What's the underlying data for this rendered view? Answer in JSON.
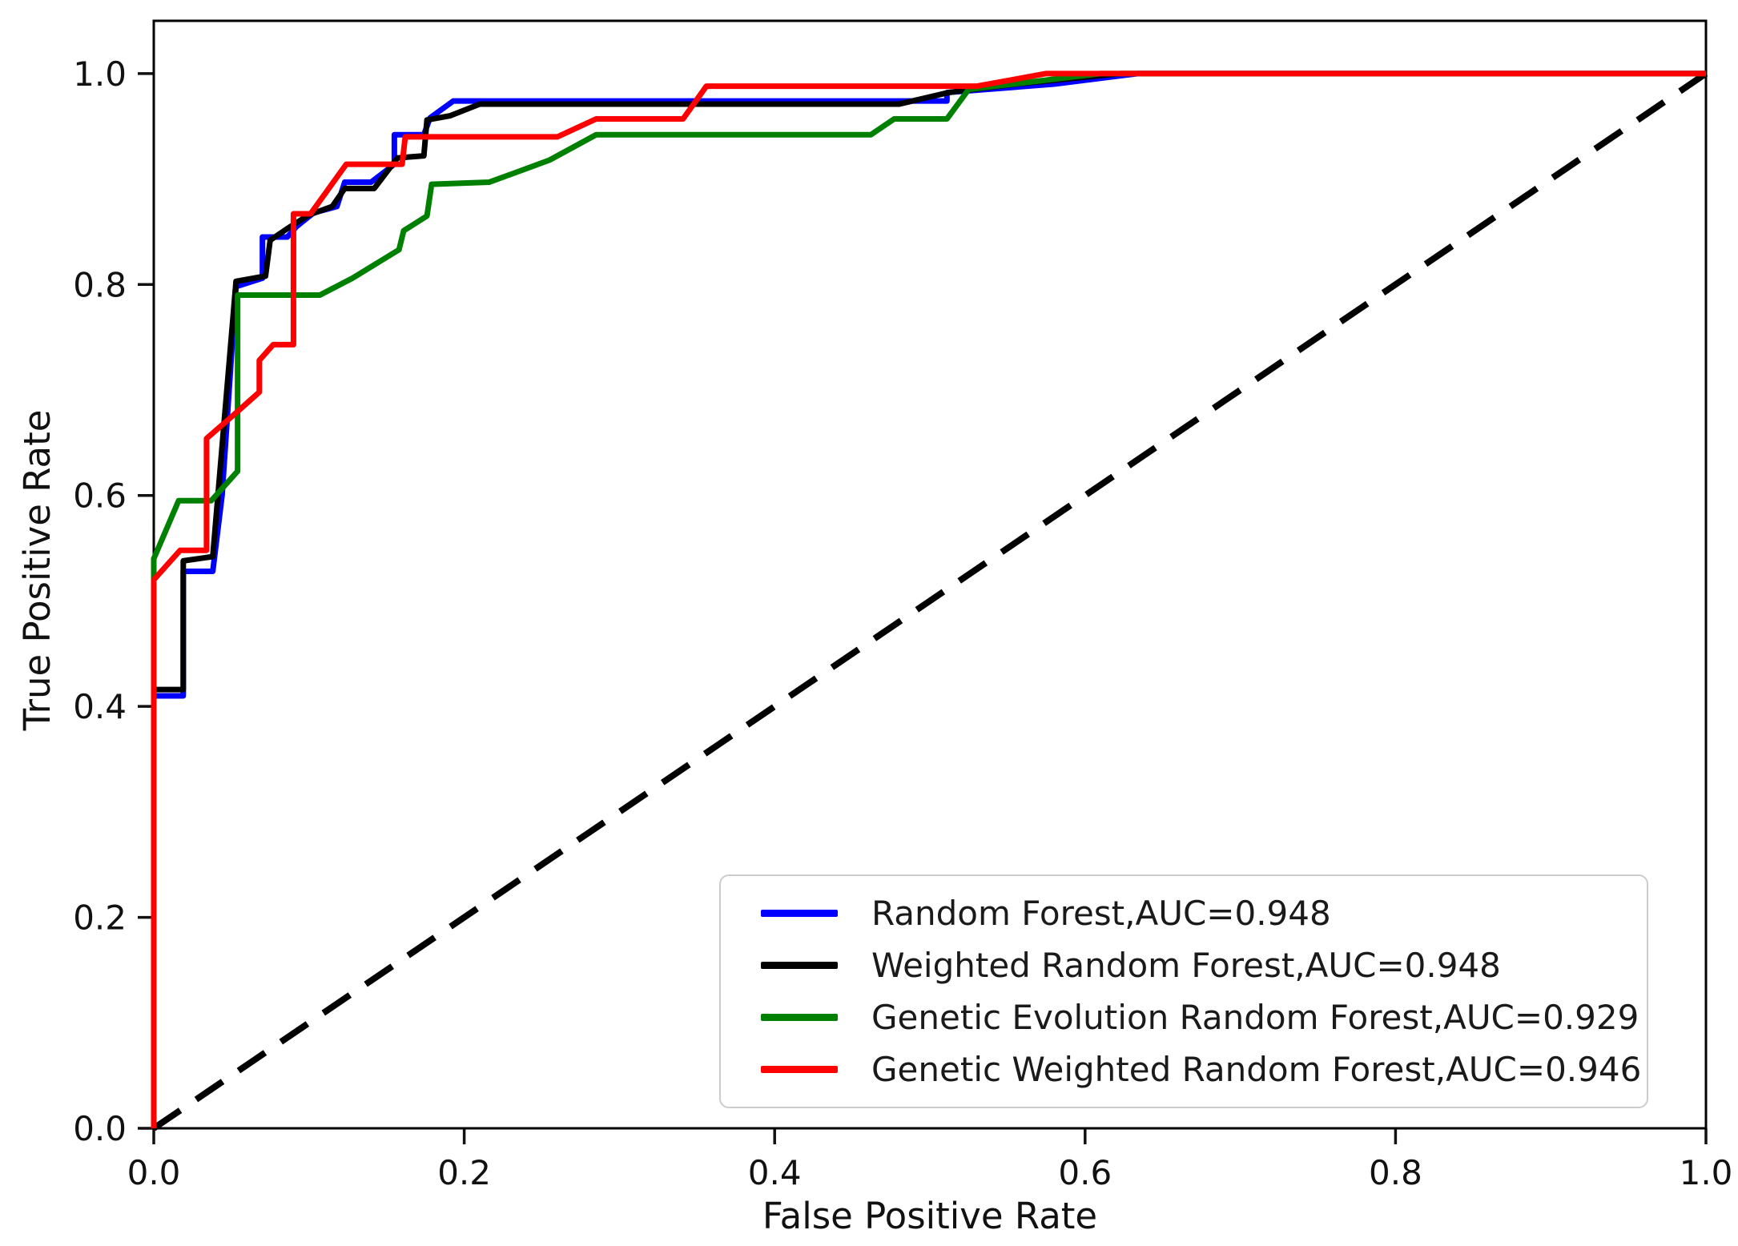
{
  "chart_data": {
    "type": "line",
    "subtype": "roc-curves",
    "title": "",
    "xlabel": "False Positive Rate",
    "ylabel": "True Positive Rate",
    "xlim": [
      0,
      1.0
    ],
    "ylim": [
      0,
      1.05
    ],
    "grid": false,
    "legend_position": "lower right",
    "ticks": {
      "x_values": [
        0,
        0.2,
        0.4,
        0.6,
        0.8,
        1.0
      ],
      "x_labels": [
        "0.0",
        "0.2",
        "0.4",
        "0.6",
        "0.8",
        "1.0"
      ],
      "y_values": [
        0,
        0.2,
        0.4,
        0.6,
        0.8,
        1.0
      ],
      "y_labels": [
        "0.0",
        "0.2",
        "0.4",
        "0.6",
        "0.8",
        "1.0"
      ]
    },
    "reference_line": {
      "name": "chance-diagonal",
      "style": "dashed",
      "color": "#000000",
      "points": [
        [
          0,
          0
        ],
        [
          1,
          1
        ]
      ]
    },
    "series": [
      {
        "name": "random-forest",
        "label": "Random Forest,AUC=0.948",
        "auc": 0.948,
        "color": "#0000ff",
        "points": [
          [
            0,
            0
          ],
          [
            0,
            0.41
          ],
          [
            0.019,
            0.41
          ],
          [
            0.019,
            0.528
          ],
          [
            0.038,
            0.528
          ],
          [
            0.044,
            0.6
          ],
          [
            0.053,
            0.798
          ],
          [
            0.07,
            0.806
          ],
          [
            0.07,
            0.845
          ],
          [
            0.086,
            0.845
          ],
          [
            0.092,
            0.855
          ],
          [
            0.103,
            0.868
          ],
          [
            0.118,
            0.874
          ],
          [
            0.123,
            0.897
          ],
          [
            0.14,
            0.897
          ],
          [
            0.155,
            0.914
          ],
          [
            0.155,
            0.942
          ],
          [
            0.174,
            0.942
          ],
          [
            0.178,
            0.958
          ],
          [
            0.193,
            0.974
          ],
          [
            0.511,
            0.974
          ],
          [
            0.511,
            0.982
          ],
          [
            0.58,
            0.99
          ],
          [
            0.634,
            1.0
          ],
          [
            1,
            1.0
          ]
        ]
      },
      {
        "name": "weighted-random-forest",
        "label": "Weighted Random Forest,AUC=0.948",
        "auc": 0.948,
        "color": "#000000",
        "points": [
          [
            0,
            0
          ],
          [
            0,
            0.416
          ],
          [
            0.019,
            0.416
          ],
          [
            0.019,
            0.538
          ],
          [
            0.038,
            0.542
          ],
          [
            0.053,
            0.803
          ],
          [
            0.072,
            0.808
          ],
          [
            0.075,
            0.842
          ],
          [
            0.086,
            0.853
          ],
          [
            0.1,
            0.866
          ],
          [
            0.115,
            0.874
          ],
          [
            0.123,
            0.891
          ],
          [
            0.142,
            0.891
          ],
          [
            0.157,
            0.92
          ],
          [
            0.174,
            0.922
          ],
          [
            0.176,
            0.956
          ],
          [
            0.191,
            0.96
          ],
          [
            0.21,
            0.971
          ],
          [
            0.48,
            0.971
          ],
          [
            0.512,
            0.982
          ],
          [
            0.555,
            0.99
          ],
          [
            0.623,
            1.0
          ],
          [
            1,
            1.0
          ]
        ]
      },
      {
        "name": "genetic-evolution-random-forest",
        "label": "Genetic Evolution Random Forest,AUC=0.929",
        "auc": 0.929,
        "color": "#008000",
        "points": [
          [
            0,
            0
          ],
          [
            0,
            0.54
          ],
          [
            0.016,
            0.595
          ],
          [
            0.037,
            0.595
          ],
          [
            0.054,
            0.623
          ],
          [
            0.054,
            0.79
          ],
          [
            0.107,
            0.79
          ],
          [
            0.128,
            0.806
          ],
          [
            0.158,
            0.833
          ],
          [
            0.161,
            0.851
          ],
          [
            0.176,
            0.865
          ],
          [
            0.179,
            0.895
          ],
          [
            0.216,
            0.897
          ],
          [
            0.231,
            0.905
          ],
          [
            0.255,
            0.918
          ],
          [
            0.285,
            0.942
          ],
          [
            0.462,
            0.942
          ],
          [
            0.477,
            0.957
          ],
          [
            0.511,
            0.957
          ],
          [
            0.525,
            0.985
          ],
          [
            0.61,
            1.0
          ],
          [
            1,
            1.0
          ]
        ]
      },
      {
        "name": "genetic-weighted-random-forest",
        "label": "Genetic Weighted Random Forest,AUC=0.946",
        "auc": 0.946,
        "color": "#ff0000",
        "points": [
          [
            0,
            0
          ],
          [
            0,
            0.52
          ],
          [
            0.017,
            0.548
          ],
          [
            0.034,
            0.548
          ],
          [
            0.034,
            0.654
          ],
          [
            0.052,
            0.677
          ],
          [
            0.068,
            0.698
          ],
          [
            0.068,
            0.728
          ],
          [
            0.077,
            0.743
          ],
          [
            0.09,
            0.743
          ],
          [
            0.09,
            0.867
          ],
          [
            0.101,
            0.867
          ],
          [
            0.124,
            0.914
          ],
          [
            0.16,
            0.914
          ],
          [
            0.162,
            0.94
          ],
          [
            0.26,
            0.94
          ],
          [
            0.285,
            0.957
          ],
          [
            0.341,
            0.957
          ],
          [
            0.356,
            0.988
          ],
          [
            0.53,
            0.988
          ],
          [
            0.575,
            1.0
          ],
          [
            1,
            1.0
          ]
        ]
      }
    ]
  }
}
